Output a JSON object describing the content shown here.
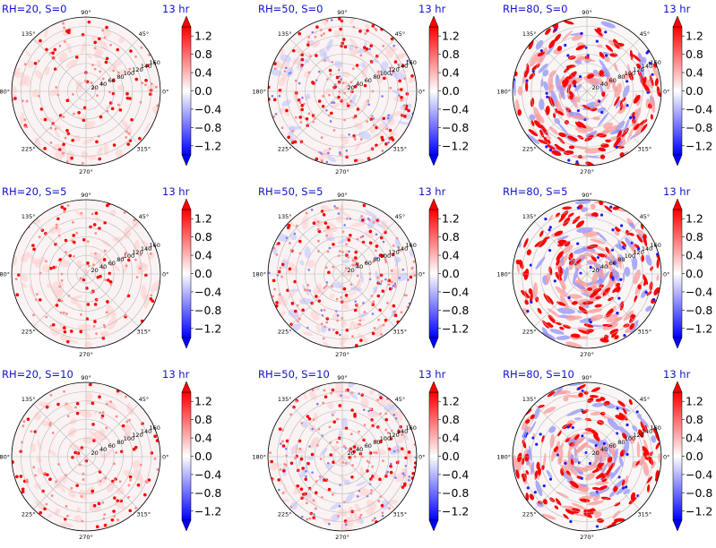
{
  "chart_data": [
    {
      "type": "heatmap",
      "title_left": "RH=20, S=0",
      "title_right": "13 hr"
    },
    {
      "type": "heatmap",
      "title_left": "RH=50, S=0",
      "title_right": "13 hr"
    },
    {
      "type": "heatmap",
      "title_left": "RH=80, S=0",
      "title_right": "13 hr"
    },
    {
      "type": "heatmap",
      "title_left": "RH=20, S=5",
      "title_right": "13 hr"
    },
    {
      "type": "heatmap",
      "title_left": "RH=50, S=5",
      "title_right": "13 hr"
    },
    {
      "type": "heatmap",
      "title_left": "RH=80, S=5",
      "title_right": "13 hr"
    },
    {
      "type": "heatmap",
      "title_left": "RH=20, S=10",
      "title_right": "13 hr"
    },
    {
      "type": "heatmap",
      "title_left": "RH=50, S=10",
      "title_right": "13 hr"
    },
    {
      "type": "heatmap",
      "title_left": "RH=80, S=10",
      "title_right": "13 hr"
    }
  ],
  "shared": {
    "projection": "polar",
    "angle_ticks": [
      "0°",
      "45°",
      "90°",
      "135°",
      "180°",
      "225°",
      "270°",
      "315°"
    ],
    "radial_ticks": [
      "20",
      "40",
      "60",
      "80",
      "100",
      "120",
      "140",
      "160"
    ],
    "rlim": [
      0,
      160
    ],
    "colorbar_ticks": [
      "1.2",
      "0.8",
      "0.4",
      "0.0",
      "−0.4",
      "−0.8",
      "−1.2"
    ],
    "colorbar_range": [
      -1.4,
      1.4
    ],
    "colormap": "bwr",
    "colors": {
      "negative": "#0000ff",
      "zero": "#ffffff",
      "positive": "#ff0000",
      "title": "#1111cc"
    },
    "field_character": [
      {
        "rh": 20,
        "description": "sparse isolated red dots, faint pink background"
      },
      {
        "rh": 50,
        "description": "denser red dots, scattered faint blue patches"
      },
      {
        "rh": 80,
        "description": "strong red ring bands, extensive blue patches"
      }
    ]
  }
}
